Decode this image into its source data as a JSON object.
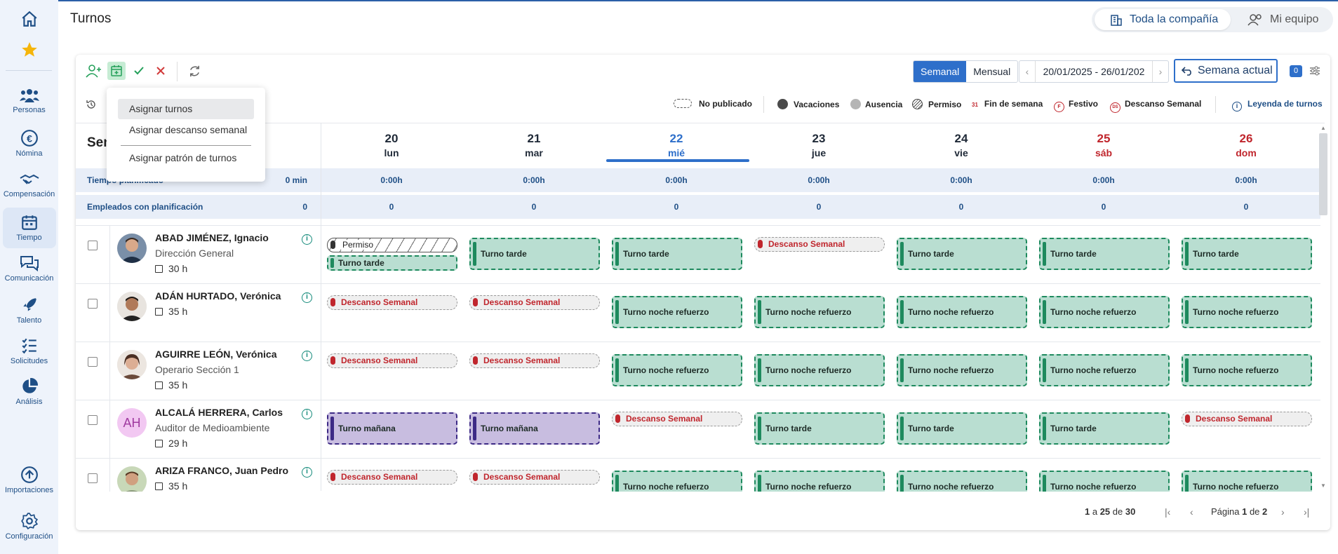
{
  "sidebar": {
    "items": [
      {
        "label": "Personas",
        "icon": "people-icon"
      },
      {
        "label": "Nómina",
        "icon": "euro-icon"
      },
      {
        "label": "Compensación",
        "icon": "handshake-icon"
      },
      {
        "label": "Tiempo",
        "icon": "calendar-icon"
      },
      {
        "label": "Comunicación",
        "icon": "chat-icon"
      },
      {
        "label": "Talento",
        "icon": "rocket-icon"
      },
      {
        "label": "Solicitudes",
        "icon": "list-icon"
      },
      {
        "label": "Análisis",
        "icon": "pie-chart-icon"
      },
      {
        "label": "Importaciones",
        "icon": "upload-icon"
      },
      {
        "label": "Configuración",
        "icon": "gear-icon"
      }
    ],
    "active": "Tiempo"
  },
  "header": {
    "title": "Turnos",
    "scope_company": "Toda la compañía",
    "scope_team": "Mi equipo"
  },
  "toolbar": {
    "view_weekly": "Semanal",
    "view_monthly": "Mensual",
    "date_range": "20/01/2025 - 26/01/202",
    "current_week": "Semana actual",
    "filter_count": "0"
  },
  "legend": {
    "not_published": "No publicado",
    "vacations": "Vacaciones",
    "absence": "Ausencia",
    "permit": "Permiso",
    "weekend": "Fin de semana",
    "weekend_icon": "31",
    "holiday": "Festivo",
    "holiday_icon": "F",
    "weekly_rest": "Descanso Semanal",
    "weekly_rest_icon": "DS",
    "shift_legend": "Leyenda de turnos"
  },
  "dropdown": {
    "assign_shifts": "Asignar turnos",
    "assign_rest": "Asignar descanso semanal",
    "assign_pattern": "Asignar patrón de turnos"
  },
  "grid": {
    "week_label": "Sem",
    "days": [
      {
        "num": "20",
        "name": "lun"
      },
      {
        "num": "21",
        "name": "mar"
      },
      {
        "num": "22",
        "name": "mié"
      },
      {
        "num": "23",
        "name": "jue"
      },
      {
        "num": "24",
        "name": "vie"
      },
      {
        "num": "25",
        "name": "sáb"
      },
      {
        "num": "26",
        "name": "dom"
      }
    ],
    "planned_time": {
      "label": "Tiempo planificado",
      "total": "0 min",
      "values": [
        "0:00h",
        "0:00h",
        "0:00h",
        "0:00h",
        "0:00h",
        "0:00h",
        "0:00h"
      ]
    },
    "employees_planned": {
      "label": "Empleados con planificación",
      "total": "0",
      "values": [
        "0",
        "0",
        "0",
        "0",
        "0",
        "0",
        "0"
      ]
    }
  },
  "employees": [
    {
      "name": "ABAD JIMÉNEZ, Ignacio",
      "role": "Dirección General",
      "hours": "30 h"
    },
    {
      "name": "ADÁN HURTADO, Verónica",
      "role": "",
      "hours": "35 h"
    },
    {
      "name": "AGUIRRE LEÓN, Verónica",
      "role": "Operario Sección 1",
      "hours": "35 h"
    },
    {
      "name": "ALCALÁ HERRERA, Carlos",
      "role": "Auditor de Medioambiente",
      "hours": "29 h",
      "initials": "AH"
    },
    {
      "name": "ARIZA FRANCO, Juan Pedro",
      "role": "",
      "hours": "35 h"
    }
  ],
  "shifts": {
    "permit": "Permiso",
    "afternoon": "Turno tarde",
    "morning": "Turno mañana",
    "night": "Turno noche refuerzo",
    "rest": "Descanso Semanal"
  },
  "pagination": {
    "range_start": "1",
    "range_mid": " a ",
    "range_end": "25",
    "of": " de ",
    "total": "30",
    "page_label": "Página ",
    "page": "1",
    "page_of": " de ",
    "pages": "2"
  },
  "colors": {
    "accent": "#2e6fca",
    "shift_green": "#b9ded1",
    "shift_purple": "#c8bde0",
    "weekend_red": "#c0262d"
  }
}
